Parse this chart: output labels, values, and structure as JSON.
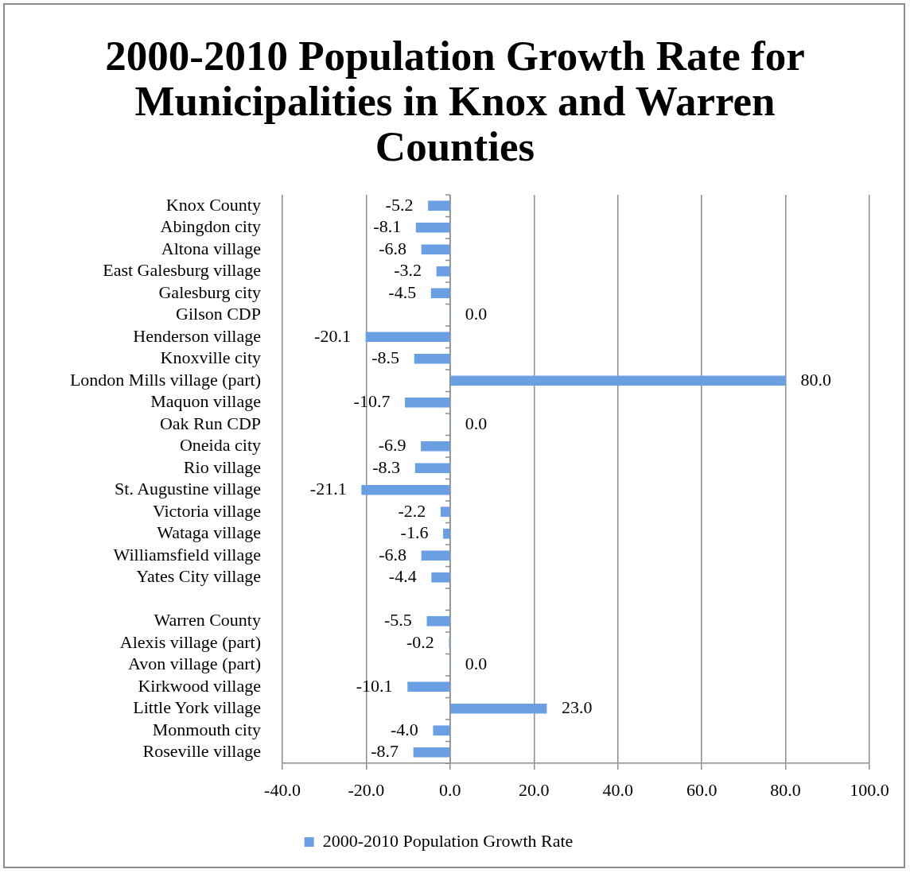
{
  "chart_data": {
    "type": "bar",
    "orientation": "horizontal",
    "title": "2000-2010 Population Growth Rate for Municipalities in Knox and Warren Counties",
    "categories": [
      "Knox County",
      "Abingdon city",
      "Altona village",
      "East Galesburg village",
      "Galesburg city",
      "Gilson CDP",
      "Henderson village",
      "Knoxville city",
      "London Mills village (part)",
      "Maquon village",
      "Oak Run CDP",
      "Oneida city",
      "Rio village",
      "St. Augustine village",
      "Victoria village",
      "Wataga village",
      "Williamsfield village",
      "Yates City village",
      null,
      "Warren County",
      "Alexis village (part)",
      "Avon village (part)",
      "Kirkwood village",
      "Little York village",
      "Monmouth city",
      "Roseville village"
    ],
    "series": [
      {
        "name": "2000-2010 Population Growth Rate",
        "color": "#6b9fe3",
        "values": [
          -5.2,
          -8.1,
          -6.8,
          -3.2,
          -4.5,
          0.0,
          -20.1,
          -8.5,
          80.0,
          -10.7,
          0.0,
          -6.9,
          -8.3,
          -21.1,
          -2.2,
          -1.6,
          -6.8,
          -4.4,
          null,
          -5.5,
          -0.2,
          0.0,
          -10.1,
          23.0,
          -4.0,
          -8.7
        ],
        "value_labels": [
          "-5.2",
          "-8.1",
          "-6.8",
          "-3.2",
          "-4.5",
          "0.0",
          "-20.1",
          "-8.5",
          "80.0",
          "-10.7",
          "0.0",
          "-6.9",
          "-8.3",
          "-21.1",
          "-2.2",
          "-1.6",
          "-6.8",
          "-4.4",
          null,
          "-5.5",
          "-0.2",
          "0.0",
          "-10.1",
          "23.0",
          "-4.0",
          "-8.7"
        ]
      }
    ],
    "xlim": [
      -40,
      100
    ],
    "xticks": [
      {
        "value": -40,
        "label": "-40.0"
      },
      {
        "value": -20,
        "label": "-20.0"
      },
      {
        "value": 0,
        "label": "0.0"
      },
      {
        "value": 20,
        "label": "20.0"
      },
      {
        "value": 40,
        "label": "40.0"
      },
      {
        "value": 60,
        "label": "60.0"
      },
      {
        "value": 80,
        "label": "80.0"
      },
      {
        "value": 100,
        "label": "100.0"
      }
    ],
    "grid": "x",
    "legend": "bottom"
  }
}
